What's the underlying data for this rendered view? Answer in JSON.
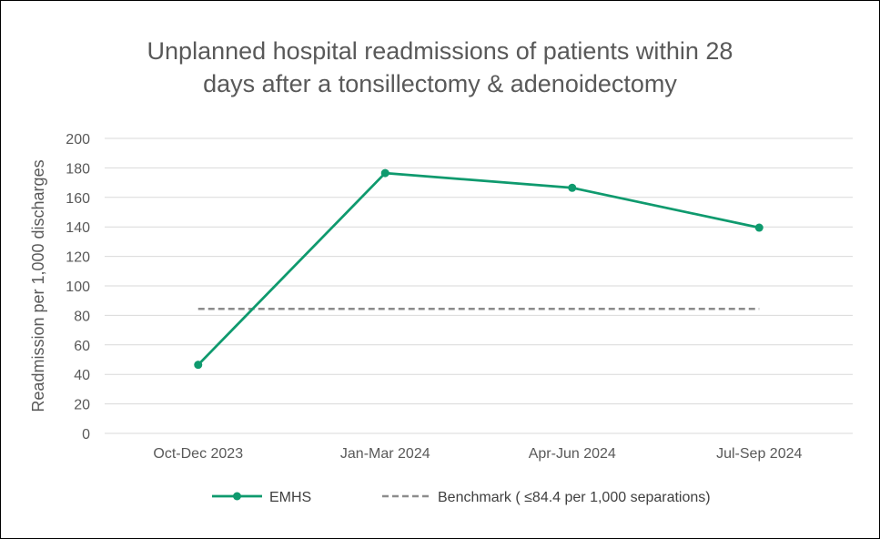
{
  "chart_data": {
    "type": "line",
    "title_line1": "Unplanned hospital readmissions of patients within 28",
    "title_line2": "days after a tonsillectomy & adenoidectomy",
    "ylabel": "Readmission per 1,000 discharges",
    "ylim": [
      0,
      200
    ],
    "yticks": [
      "0",
      "20",
      "40",
      "60",
      "80",
      "100",
      "120",
      "140",
      "160",
      "180",
      "200"
    ],
    "categories": [
      "Oct-Dec 2023",
      "Jan-Mar 2024",
      "Apr-Jun 2024",
      "Jul-Sep 2024"
    ],
    "series": [
      {
        "name": "EMHS",
        "values": [
          46.5,
          176.5,
          166.5,
          139.5
        ],
        "color": "#0f9a6e"
      },
      {
        "name": "Benchmark ( ≤84.4 per 1,000 separations)",
        "values": [
          84.4,
          84.4,
          84.4,
          84.4
        ],
        "color": "#8c8c8c"
      }
    ],
    "grid": true,
    "legend_position": "bottom"
  }
}
